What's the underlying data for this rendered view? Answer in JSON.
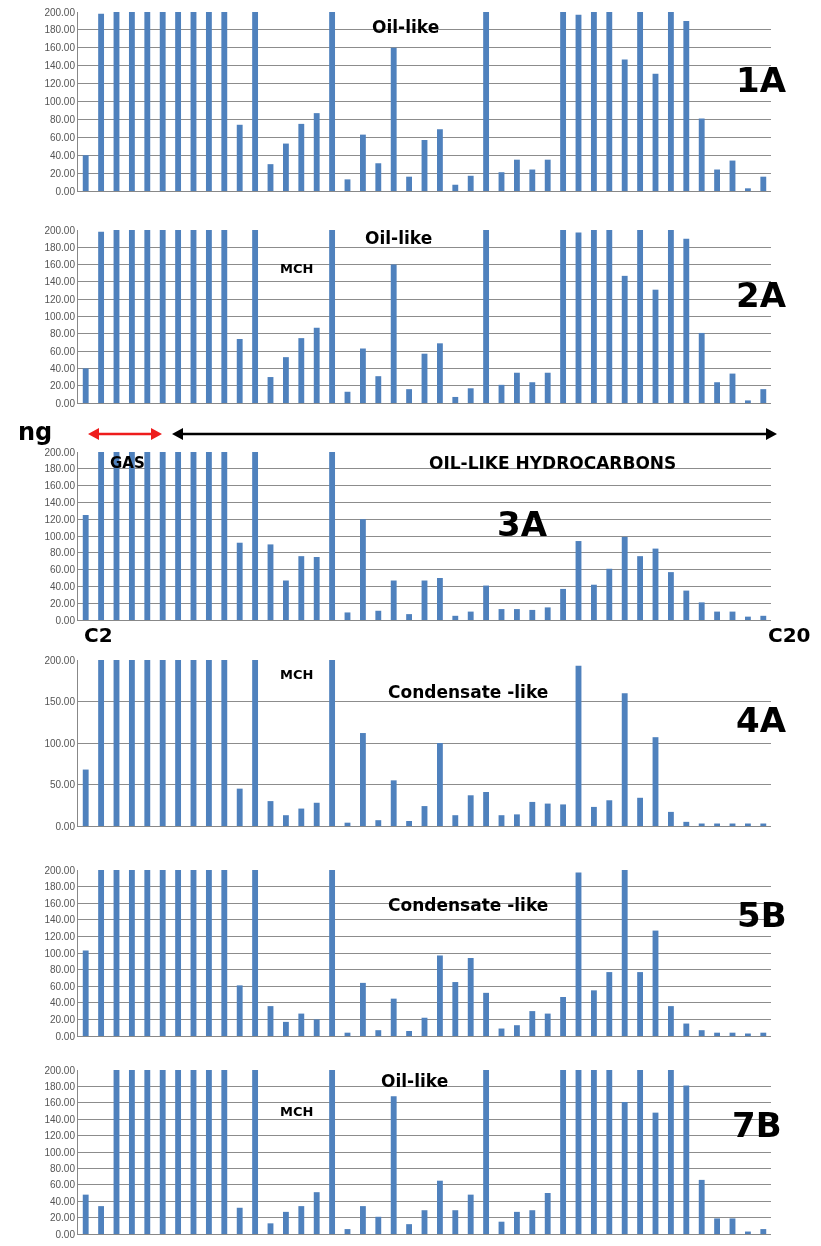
{
  "chart_data": [
    {
      "type": "bar",
      "categories": [
        null,
        null,
        null,
        null,
        null,
        null,
        null,
        null,
        null,
        null,
        null,
        null,
        null,
        null,
        null,
        null,
        null,
        null,
        null,
        null,
        null,
        null,
        null,
        null,
        null,
        null,
        null,
        null,
        null,
        null,
        null,
        null,
        null,
        null,
        null,
        null,
        null,
        null,
        null,
        null,
        null,
        null,
        null,
        null,
        null
      ],
      "values": [
        40,
        198,
        200,
        200,
        200,
        200,
        200,
        200,
        200,
        200,
        74,
        200,
        30,
        53,
        75,
        87,
        200,
        13,
        63,
        31,
        160,
        16,
        57,
        69,
        7,
        17,
        200,
        21,
        35,
        24,
        35,
        200,
        197,
        200,
        200,
        147,
        200,
        131,
        200,
        190,
        81,
        24,
        34,
        3,
        16
      ],
      "color": "#4f81bd",
      "ylim": [
        0,
        200
      ],
      "yticks": [
        {
          "value": 0,
          "label": "0.00"
        },
        {
          "value": 20,
          "label": "20.00"
        },
        {
          "value": 40,
          "label": "40.00"
        },
        {
          "value": 60,
          "label": "60.00"
        },
        {
          "value": 80,
          "label": "80.00"
        },
        {
          "value": 100,
          "label": "100.00"
        },
        {
          "value": 120,
          "label": "120.00"
        },
        {
          "value": 140,
          "label": "140.00"
        },
        {
          "value": 160,
          "label": "160.00"
        },
        {
          "value": 180,
          "label": "180.00"
        },
        {
          "value": 200,
          "label": "200.00"
        }
      ],
      "grid": "y",
      "tick_labels": "y",
      "annotations": [
        "Oil-like",
        "1A"
      ]
    },
    {
      "type": "bar",
      "categories": [
        null,
        null,
        null,
        null,
        null,
        null,
        null,
        null,
        null,
        null,
        null,
        null,
        null,
        null,
        null,
        null,
        null,
        null,
        null,
        null,
        null,
        null,
        null,
        null,
        null,
        null,
        null,
        null,
        null,
        null,
        null,
        null,
        null,
        null,
        null,
        null,
        null,
        null,
        null,
        null,
        null,
        null,
        null,
        null,
        null
      ],
      "values": [
        40,
        198,
        200,
        200,
        200,
        200,
        200,
        200,
        200,
        200,
        74,
        200,
        30,
        53,
        75,
        87,
        200,
        13,
        63,
        31,
        160,
        16,
        57,
        69,
        7,
        17,
        200,
        21,
        35,
        24,
        35,
        200,
        197,
        200,
        200,
        147,
        200,
        131,
        200,
        190,
        81,
        24,
        34,
        3,
        16
      ],
      "color": "#4f81bd",
      "ylim": [
        0,
        200
      ],
      "yticks": [
        {
          "value": 0,
          "label": "0.00"
        },
        {
          "value": 20,
          "label": "20.00"
        },
        {
          "value": 40,
          "label": "40.00"
        },
        {
          "value": 60,
          "label": "60.00"
        },
        {
          "value": 80,
          "label": "80.00"
        },
        {
          "value": 100,
          "label": "100.00"
        },
        {
          "value": 120,
          "label": "120.00"
        },
        {
          "value": 140,
          "label": "140.00"
        },
        {
          "value": 160,
          "label": "160.00"
        },
        {
          "value": 180,
          "label": "180.00"
        },
        {
          "value": 200,
          "label": "200.00"
        }
      ],
      "grid": "y",
      "tick_labels": "y",
      "annotations": [
        "Oil-like",
        "MCH",
        "2A"
      ]
    },
    {
      "type": "bar",
      "categories": [
        null,
        null,
        null,
        null,
        null,
        null,
        null,
        null,
        null,
        null,
        null,
        null,
        null,
        null,
        null,
        null,
        null,
        null,
        null,
        null,
        null,
        null,
        null,
        null,
        null,
        null,
        null,
        null,
        null,
        null,
        null,
        null,
        null,
        null,
        null,
        null,
        null,
        null,
        null,
        null,
        null,
        null,
        null,
        null,
        null
      ],
      "values": [
        125,
        200,
        200,
        200,
        200,
        200,
        200,
        200,
        200,
        200,
        92,
        200,
        90,
        47,
        76,
        75,
        200,
        9,
        120,
        11,
        47,
        7,
        47,
        50,
        5,
        10,
        41,
        13,
        13,
        12,
        15,
        37,
        94,
        42,
        61,
        99,
        76,
        85,
        57,
        35,
        21,
        10,
        10,
        4,
        5
      ],
      "color": "#4f81bd",
      "ylim": [
        0,
        200
      ],
      "yticks": [
        {
          "value": 0,
          "label": "0.00"
        },
        {
          "value": 20,
          "label": "20.00"
        },
        {
          "value": 40,
          "label": "40.00"
        },
        {
          "value": 60,
          "label": "60.00"
        },
        {
          "value": 80,
          "label": "80.00"
        },
        {
          "value": 100,
          "label": "100.00"
        },
        {
          "value": 120,
          "label": "120.00"
        },
        {
          "value": 140,
          "label": "140.00"
        },
        {
          "value": 160,
          "label": "160.00"
        },
        {
          "value": 180,
          "label": "180.00"
        },
        {
          "value": 200,
          "label": "200.00"
        }
      ],
      "grid": "y",
      "tick_labels": "y",
      "annotations": [
        "ng",
        "GAS",
        "OIL-LIKE HYDROCARBONS",
        "3A",
        "C2",
        "C20"
      ]
    },
    {
      "type": "bar",
      "categories": [
        null,
        null,
        null,
        null,
        null,
        null,
        null,
        null,
        null,
        null,
        null,
        null,
        null,
        null,
        null,
        null,
        null,
        null,
        null,
        null,
        null,
        null,
        null,
        null,
        null,
        null,
        null,
        null,
        null,
        null,
        null,
        null,
        null,
        null,
        null,
        null,
        null,
        null,
        null,
        null,
        null,
        null,
        null,
        null,
        null
      ],
      "values": [
        68,
        200,
        200,
        200,
        200,
        200,
        200,
        200,
        200,
        200,
        45,
        200,
        30,
        13,
        21,
        28,
        200,
        4,
        112,
        7,
        55,
        6,
        24,
        100,
        13,
        37,
        41,
        13,
        14,
        29,
        27,
        26,
        193,
        23,
        31,
        160,
        34,
        107,
        17,
        5,
        3,
        3,
        3,
        3,
        3
      ],
      "color": "#4f81bd",
      "ylim": [
        0,
        200
      ],
      "yticks": [
        {
          "value": 0,
          "label": "0.00"
        },
        {
          "value": 50,
          "label": "50.00"
        },
        {
          "value": 100,
          "label": "100.00"
        },
        {
          "value": 150,
          "label": "150.00"
        },
        {
          "value": 200,
          "label": "200.00"
        }
      ],
      "grid": "y",
      "tick_labels": "y",
      "annotations": [
        "MCH",
        "Condensate -like",
        "4A"
      ]
    },
    {
      "type": "bar",
      "categories": [
        null,
        null,
        null,
        null,
        null,
        null,
        null,
        null,
        null,
        null,
        null,
        null,
        null,
        null,
        null,
        null,
        null,
        null,
        null,
        null,
        null,
        null,
        null,
        null,
        null,
        null,
        null,
        null,
        null,
        null,
        null,
        null,
        null,
        null,
        null,
        null,
        null,
        null,
        null,
        null,
        null,
        null,
        null,
        null,
        null
      ],
      "values": [
        103,
        200,
        200,
        200,
        200,
        200,
        200,
        200,
        200,
        200,
        61,
        200,
        36,
        17,
        27,
        20,
        200,
        4,
        64,
        7,
        45,
        6,
        22,
        97,
        65,
        94,
        52,
        9,
        13,
        30,
        27,
        47,
        197,
        55,
        77,
        200,
        77,
        127,
        36,
        15,
        7,
        4,
        4,
        3,
        4
      ],
      "color": "#4f81bd",
      "ylim": [
        0,
        200
      ],
      "yticks": [
        {
          "value": 0,
          "label": "0.00"
        },
        {
          "value": 20,
          "label": "20.00"
        },
        {
          "value": 40,
          "label": "40.00"
        },
        {
          "value": 60,
          "label": "60.00"
        },
        {
          "value": 80,
          "label": "80.00"
        },
        {
          "value": 100,
          "label": "100.00"
        },
        {
          "value": 120,
          "label": "120.00"
        },
        {
          "value": 140,
          "label": "140.00"
        },
        {
          "value": 160,
          "label": "160.00"
        },
        {
          "value": 180,
          "label": "180.00"
        },
        {
          "value": 200,
          "label": "200.00"
        }
      ],
      "grid": "y",
      "tick_labels": "y",
      "annotations": [
        "Condensate -like",
        "5B"
      ]
    },
    {
      "type": "bar",
      "categories": [
        null,
        null,
        null,
        null,
        null,
        null,
        null,
        null,
        null,
        null,
        null,
        null,
        null,
        null,
        null,
        null,
        null,
        null,
        null,
        null,
        null,
        null,
        null,
        null,
        null,
        null,
        null,
        null,
        null,
        null,
        null,
        null,
        null,
        null,
        null,
        null,
        null,
        null,
        null,
        null,
        null,
        null,
        null,
        null,
        null
      ],
      "values": [
        48,
        34,
        200,
        200,
        200,
        200,
        200,
        200,
        200,
        200,
        32,
        200,
        13,
        27,
        34,
        51,
        200,
        6,
        34,
        21,
        168,
        12,
        29,
        65,
        29,
        48,
        200,
        15,
        27,
        29,
        50,
        200,
        200,
        200,
        200,
        161,
        200,
        148,
        200,
        181,
        66,
        19,
        19,
        3,
        6
      ],
      "color": "#4f81bd",
      "ylim": [
        0,
        200
      ],
      "yticks": [
        {
          "value": 0,
          "label": "0.00"
        },
        {
          "value": 20,
          "label": "20.00"
        },
        {
          "value": 40,
          "label": "40.00"
        },
        {
          "value": 60,
          "label": "60.00"
        },
        {
          "value": 80,
          "label": "80.00"
        },
        {
          "value": 100,
          "label": "100.00"
        },
        {
          "value": 120,
          "label": "120.00"
        },
        {
          "value": 140,
          "label": "140.00"
        },
        {
          "value": 160,
          "label": "160.00"
        },
        {
          "value": 180,
          "label": "180.00"
        },
        {
          "value": 200,
          "label": "200.00"
        }
      ],
      "grid": "y",
      "tick_labels": "y",
      "annotations": [
        "Oil-like",
        "MCH",
        "7B"
      ]
    }
  ]
}
